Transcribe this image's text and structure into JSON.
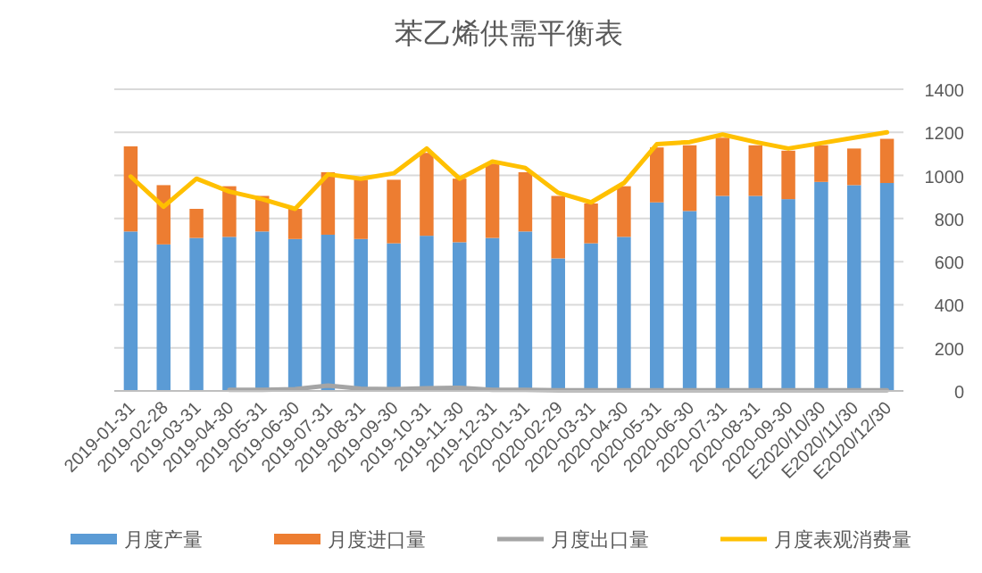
{
  "chart_data": {
    "type": "bar",
    "title": "苯乙烯供需平衡表",
    "stacked": true,
    "categories": [
      "2019-01-31",
      "2019-02-28",
      "2019-03-31",
      "2019-04-30",
      "2019-05-31",
      "2019-06-30",
      "2019-07-31",
      "2019-08-31",
      "2019-09-30",
      "2019-10-31",
      "2019-11-30",
      "2019-12-31",
      "2020-01-31",
      "2020-02-29",
      "2020-03-31",
      "2020-04-30",
      "2020-05-31",
      "2020-06-30",
      "2020-07-31",
      "2020-08-31",
      "2020-09-30",
      "E2020/10/30",
      "E2020/11/30",
      "E2020/12/30"
    ],
    "series": [
      {
        "name": "月度产量",
        "color": "#5b9bd5",
        "values": [
          740,
          680,
          710,
          715,
          740,
          705,
          725,
          705,
          685,
          720,
          690,
          710,
          740,
          615,
          685,
          715,
          875,
          835,
          905,
          905,
          890,
          970,
          955,
          965
        ]
      },
      {
        "name": "月度进口量",
        "color": "#ed7d31",
        "values": [
          395,
          275,
          135,
          235,
          165,
          140,
          290,
          275,
          295,
          385,
          295,
          345,
          275,
          290,
          185,
          235,
          255,
          305,
          270,
          235,
          225,
          170,
          170,
          205
        ]
      },
      {
        "name": "月度出口量",
        "type": "line",
        "color": "#a5a5a5",
        "values": [
          null,
          null,
          null,
          5,
          5,
          8,
          25,
          10,
          8,
          12,
          15,
          5,
          5,
          3,
          3,
          3,
          3,
          3,
          3,
          3,
          3,
          3,
          3,
          3
        ]
      },
      {
        "name": "月度表观消费量",
        "type": "line",
        "color": "#ffc000",
        "values": [
          995,
          855,
          985,
          925,
          890,
          845,
          1005,
          985,
          1010,
          1125,
          985,
          1065,
          1035,
          920,
          875,
          965,
          1145,
          1155,
          1190,
          1155,
          1125,
          1150,
          1175,
          1200
        ]
      }
    ],
    "ylim": [
      0,
      1400
    ],
    "yticks": [
      0,
      200,
      400,
      600,
      800,
      1000,
      1200,
      1400
    ],
    "grid": "y",
    "legend": "bottom"
  }
}
